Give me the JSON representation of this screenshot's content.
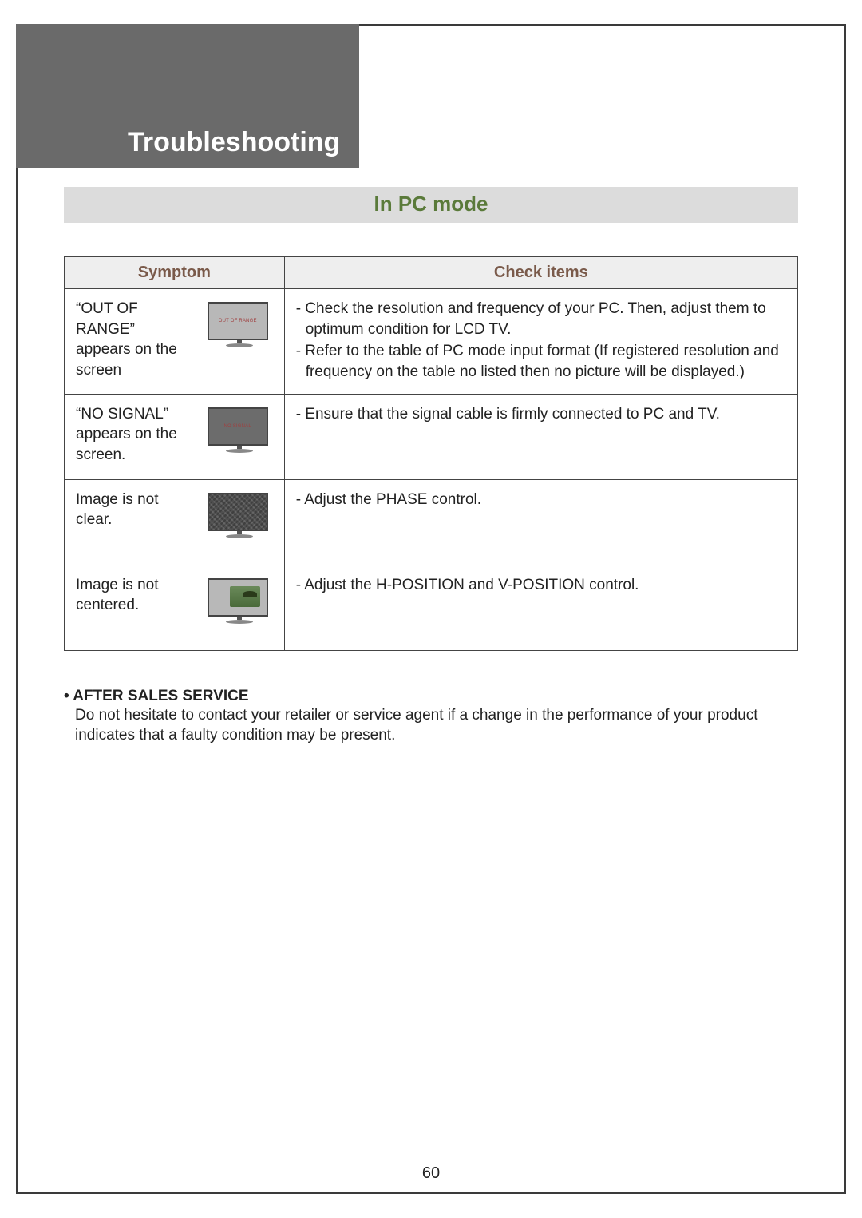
{
  "colors": {
    "page_border": "#3a3a3a",
    "header_bg": "#6a6a6a",
    "header_text": "#ffffff",
    "section_bar_bg": "#dcdcdc",
    "section_bar_text": "#5a7a3a",
    "table_border": "#444444",
    "table_header_bg": "#eeeeee",
    "table_header_text": "#7a5a4a",
    "body_text": "#222222"
  },
  "typography": {
    "header_title_fontsize": 34,
    "section_bar_fontsize": 26,
    "table_header_fontsize": 20,
    "body_fontsize": 19
  },
  "header": {
    "title": "Troubleshooting"
  },
  "section": {
    "title": "In PC mode"
  },
  "table": {
    "columns": {
      "symptom": "Symptom",
      "check": "Check items"
    },
    "rows": [
      {
        "symptom": "“OUT OF RANGE” appears on the screen",
        "mini_label": "OUT OF RANGE",
        "mini_style": "light",
        "checks": [
          "Check the resolution and frequency of your PC. Then, adjust them to optimum condition for LCD TV.",
          "Refer to the table of PC mode input format (If registered resolution and frequency on the table no listed then no picture will be displayed.)"
        ]
      },
      {
        "symptom": "“NO SIGNAL” appears on the screen.",
        "mini_label": "NO SIGNAL",
        "mini_style": "dark",
        "checks": [
          "Ensure that the signal cable is firmly connected to PC and TV."
        ]
      },
      {
        "symptom": "Image is not clear.",
        "mini_label": "",
        "mini_style": "noisy",
        "checks": [
          "Adjust the PHASE control."
        ]
      },
      {
        "symptom": "Image is not centered.",
        "mini_label": "",
        "mini_style": "off-center",
        "checks": [
          "Adjust the H-POSITION and V-POSITION control."
        ]
      }
    ]
  },
  "after_sales": {
    "bullet": "•",
    "heading": "AFTER SALES SERVICE",
    "body": "Do not hesitate to contact your retailer or service agent if a change in the performance of your product indicates that a faulty condition may be present."
  },
  "page_number": "60"
}
